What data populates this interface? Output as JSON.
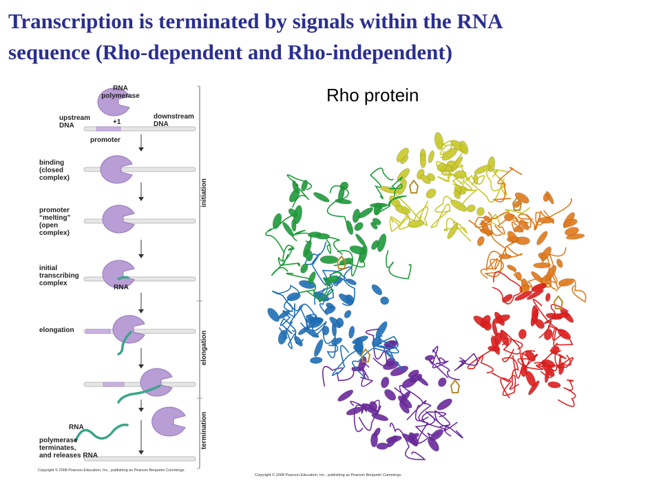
{
  "title_lines": [
    "Transcription is terminated by signals within the RNA",
    "sequence (Rho-dependent and Rho-independent)"
  ],
  "left_figure": {
    "labels": [
      {
        "lines": [
          "RNA",
          "polymerase"
        ]
      },
      {
        "lines": [
          "upstream",
          "DNA"
        ]
      },
      {
        "lines": [
          "+1"
        ]
      },
      {
        "lines": [
          "downstream",
          "DNA"
        ]
      },
      {
        "lines": [
          "promoter"
        ]
      },
      {
        "lines": [
          "binding",
          "(closed",
          "complex)"
        ]
      },
      {
        "lines": [
          "promoter",
          "“melting”",
          "(open",
          "complex)"
        ]
      },
      {
        "lines": [
          "initial",
          "transcribing",
          "complex"
        ]
      },
      {
        "lines": [
          "RNA"
        ]
      },
      {
        "lines": [
          "elongation"
        ]
      },
      {
        "lines": [
          "RNA"
        ]
      },
      {
        "lines": [
          "polymerase",
          "terminates,",
          "and releases RNA"
        ]
      }
    ],
    "phases": [
      "initiation",
      "elongation",
      "termination"
    ],
    "copyright": "Copyright © 2008 Pearson Education, Inc., publishing as Pearson Benjamin Cummings."
  },
  "right_figure": {
    "label": "Rho protein",
    "copyright": "Copyright © 2008 Pearson Education, Inc., publishing as Pearson Benjamin Cummings."
  }
}
